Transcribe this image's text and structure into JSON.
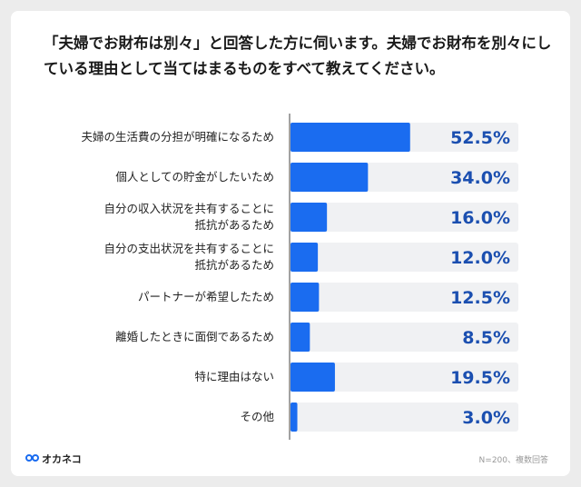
{
  "chart_data": {
    "type": "barh",
    "title": "「夫婦でお財布は別々」と回答した方に伺います。夫婦でお財布を別々にしている理由として当てはまるものをすべて教えてください。",
    "categories": [
      "夫婦の生活費の分担が明確になるため",
      "個人としての貯金がしたいため",
      "自分の収入状況を共有することに\n抵抗があるため",
      "自分の支出状況を共有することに\n抵抗があるため",
      "パートナーが希望したため",
      "離婚したときに面倒であるため",
      "特に理由はない",
      "その他"
    ],
    "values": [
      52.5,
      34.0,
      16.0,
      12.0,
      12.5,
      8.5,
      19.5,
      3.0
    ],
    "value_labels": [
      "52.5%",
      "34.0%",
      "16.0%",
      "12.0%",
      "12.5%",
      "8.5%",
      "19.5%",
      "3.0%"
    ],
    "color": "#1a6cf0",
    "xlim": [
      0,
      100
    ],
    "note": "N=200、複数回答"
  },
  "brand": "オカネコ"
}
